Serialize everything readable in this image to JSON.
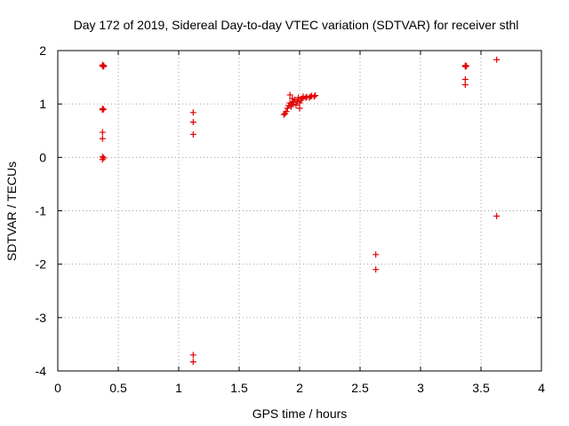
{
  "chart_data": {
    "type": "scatter",
    "title": "Day 172 of 2019, Sidereal Day-to-day VTEC variation (SDTVAR) for receiver sthl",
    "xlabel": "GPS time / hours",
    "ylabel": "SDTVAR / TECUs",
    "xlim": [
      0,
      4
    ],
    "ylim": [
      -4,
      2
    ],
    "grid": true,
    "legend": "none",
    "marker": "+",
    "color": "#e00000",
    "xticks": [
      0,
      0.5,
      1,
      1.5,
      2,
      2.5,
      3,
      3.5,
      4
    ],
    "xtick_labels": [
      "0",
      "0.5",
      "1",
      "1.5",
      "2",
      "2.5",
      "3",
      "3.5",
      "4"
    ],
    "yticks": [
      -4,
      -3,
      -2,
      -1,
      0,
      1,
      2
    ],
    "ytick_labels": [
      "-4",
      "-3",
      "-2",
      "-1",
      "0",
      "1",
      "2"
    ],
    "series": [
      {
        "name": "SDTVAR",
        "points": [
          [
            0.37,
            1.73
          ],
          [
            0.38,
            1.72
          ],
          [
            0.37,
            1.71
          ],
          [
            0.38,
            1.7
          ],
          [
            0.37,
            0.91
          ],
          [
            0.38,
            0.9
          ],
          [
            0.37,
            0.89
          ],
          [
            0.37,
            0.47
          ],
          [
            0.37,
            0.35
          ],
          [
            0.37,
            0.01
          ],
          [
            0.38,
            -0.01
          ],
          [
            0.37,
            -0.04
          ],
          [
            1.12,
            0.84
          ],
          [
            1.12,
            0.66
          ],
          [
            1.12,
            0.43
          ],
          [
            1.12,
            -3.7
          ],
          [
            1.12,
            -3.83
          ],
          [
            1.87,
            0.8
          ],
          [
            1.88,
            0.82
          ],
          [
            1.89,
            0.86
          ],
          [
            1.9,
            0.92
          ],
          [
            1.91,
            0.97
          ],
          [
            1.92,
            1.02
          ],
          [
            1.92,
            1.17
          ],
          [
            1.93,
            0.95
          ],
          [
            1.94,
            1.0
          ],
          [
            1.94,
            1.1
          ],
          [
            1.95,
            1.04
          ],
          [
            1.96,
            1.08
          ],
          [
            1.97,
            0.98
          ],
          [
            1.98,
            1.05
          ],
          [
            1.99,
            1.12
          ],
          [
            2.0,
            0.92
          ],
          [
            2.0,
            1.02
          ],
          [
            2.01,
            1.07
          ],
          [
            2.02,
            1.1
          ],
          [
            2.03,
            1.14
          ],
          [
            2.05,
            1.12
          ],
          [
            2.06,
            1.13
          ],
          [
            2.08,
            1.12
          ],
          [
            2.09,
            1.14
          ],
          [
            2.1,
            1.15
          ],
          [
            2.12,
            1.14
          ],
          [
            2.13,
            1.16
          ],
          [
            2.63,
            -1.82
          ],
          [
            2.63,
            -2.1
          ],
          [
            3.37,
            1.72
          ],
          [
            3.38,
            1.71
          ],
          [
            3.37,
            1.7
          ],
          [
            3.37,
            1.46
          ],
          [
            3.37,
            1.36
          ],
          [
            3.63,
            1.83
          ],
          [
            3.63,
            -1.1
          ]
        ]
      }
    ]
  }
}
